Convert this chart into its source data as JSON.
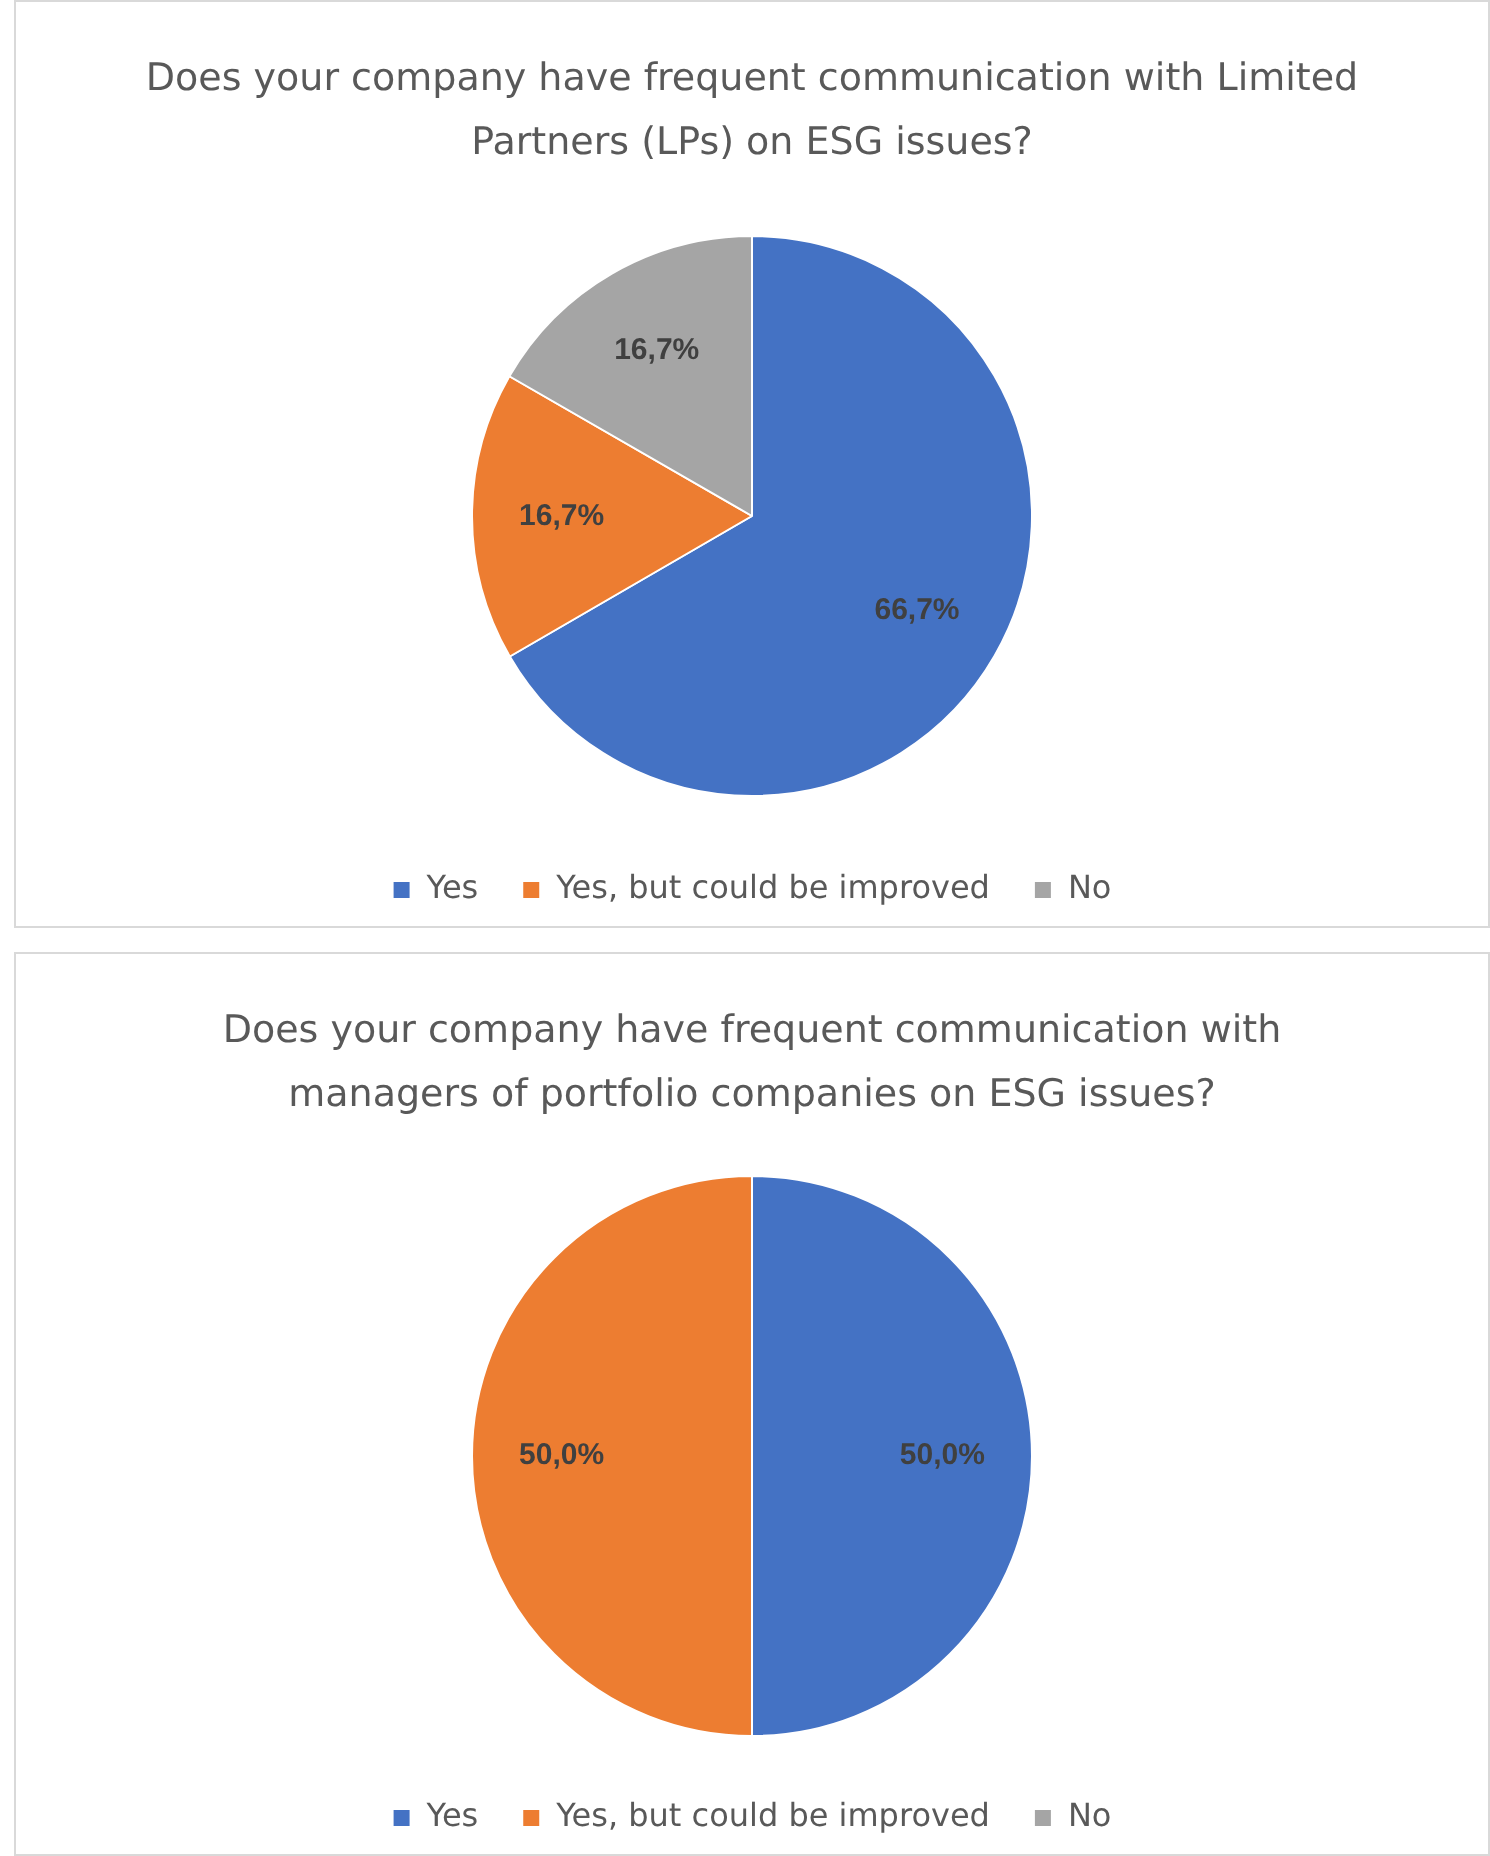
{
  "chart_data": [
    {
      "type": "pie",
      "title": "Does your company have frequent communication with Limited Partners (LPs) on ESG issues?",
      "categories": [
        "Yes",
        "Yes, but could be improved",
        "No"
      ],
      "values": [
        66.7,
        16.7,
        16.7
      ],
      "colors": [
        "#4472c4",
        "#ed7d31",
        "#a5a5a5"
      ],
      "value_labels": [
        "66,7%",
        "16,7%",
        "16,7%"
      ],
      "legend": "bottom"
    },
    {
      "type": "pie",
      "title": "Does your company have frequent communication with managers of portfolio companies on ESG issues?",
      "categories": [
        "Yes",
        "Yes, but could be improved",
        "No"
      ],
      "values": [
        50,
        50,
        0
      ],
      "colors": [
        "#4472c4",
        "#ed7d31",
        "#a5a5a5"
      ],
      "value_labels": [
        "50,0%",
        "50,0%",
        null
      ],
      "legend": "bottom"
    }
  ]
}
